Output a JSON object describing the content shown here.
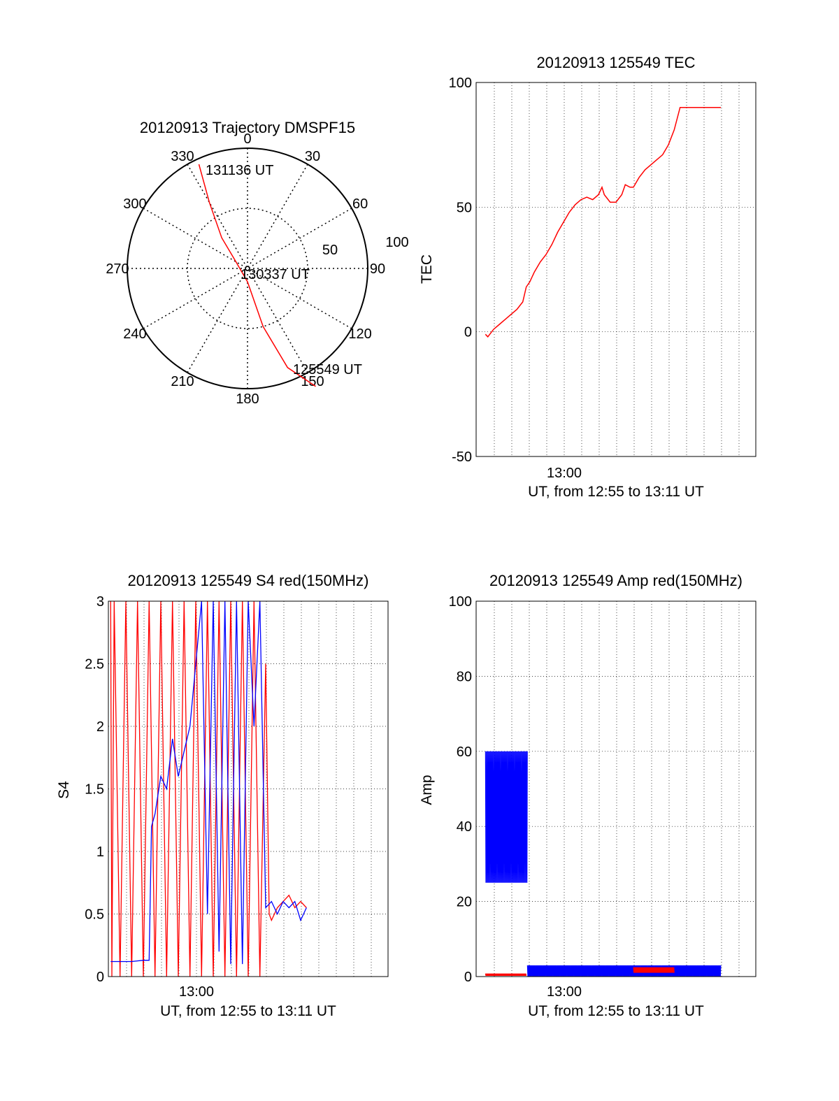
{
  "chart_data": [
    {
      "type": "polar",
      "title": "20120913 Trajectory DMSPF15",
      "angle_labels": [
        "0",
        "30",
        "60",
        "90",
        "120",
        "150",
        "180",
        "210",
        "240",
        "270",
        "300",
        "330"
      ],
      "radius_labels": [
        "50",
        "100"
      ],
      "trajectory": {
        "color": "#ff0000",
        "points": [
          {
            "az": 335,
            "zen": 86
          },
          {
            "az": 330,
            "zen": 57
          },
          {
            "az": 320,
            "zen": 30
          },
          {
            "az": 300,
            "zen": 10
          },
          {
            "az": 180,
            "zen": 10
          },
          {
            "az": 165,
            "zen": 45
          },
          {
            "az": 158,
            "zen": 80
          },
          {
            "az": 150,
            "zen": 102
          }
        ],
        "labels": [
          "131136 UT",
          "130337 UT",
          "125549 UT"
        ]
      }
    },
    {
      "type": "line",
      "title": "20120913 125549 TEC",
      "ylabel": "TEC",
      "xlabel": "UT, from 12:55 to 13:11 UT",
      "x_tick_label": "13:00",
      "x_range_minutes": [
        12.93,
        13.18
      ],
      "ylim": [
        -50,
        100
      ],
      "yticks": [
        "100",
        "50",
        "0",
        "-50"
      ],
      "grid": true,
      "series": [
        {
          "color": "#ff0000",
          "points": [
            [
              55.8,
              -1
            ],
            [
              56.0,
              -2
            ],
            [
              56.5,
              1
            ],
            [
              57.0,
              3
            ],
            [
              57.5,
              5
            ],
            [
              58.0,
              7
            ],
            [
              58.5,
              9
            ],
            [
              59.0,
              12
            ],
            [
              59.3,
              18
            ],
            [
              59.6,
              20
            ],
            [
              60.0,
              24
            ],
            [
              60.5,
              28
            ],
            [
              61.0,
              31
            ],
            [
              61.5,
              35
            ],
            [
              62.0,
              40
            ],
            [
              62.5,
              44
            ],
            [
              63.0,
              48
            ],
            [
              63.5,
              51
            ],
            [
              64.0,
              53
            ],
            [
              64.5,
              54
            ],
            [
              65.0,
              53
            ],
            [
              65.5,
              55
            ],
            [
              65.8,
              58
            ],
            [
              66.0,
              55
            ],
            [
              66.5,
              52
            ],
            [
              67.0,
              52
            ],
            [
              67.5,
              55
            ],
            [
              67.8,
              59
            ],
            [
              68.2,
              58
            ],
            [
              68.5,
              58
            ],
            [
              69.0,
              62
            ],
            [
              69.5,
              65
            ],
            [
              70.0,
              67
            ],
            [
              70.5,
              69
            ],
            [
              71.0,
              71
            ],
            [
              71.5,
              75
            ],
            [
              72.0,
              81
            ],
            [
              72.5,
              90
            ],
            [
              73.0,
              90
            ],
            [
              74.0,
              90
            ],
            [
              75.0,
              90
            ],
            [
              76.0,
              90
            ]
          ]
        }
      ]
    },
    {
      "type": "line",
      "title": "20120913 125549 S4 red(150MHz)",
      "ylabel": "S4",
      "xlabel": "UT, from 12:55 to 13:11 UT",
      "x_tick_label": "13:00",
      "ylim": [
        0,
        3
      ],
      "yticks": [
        "3",
        "2.5",
        "2",
        "1.5",
        "1",
        "0.5",
        "0"
      ],
      "grid": true,
      "series": [
        {
          "color": "#ff0000",
          "note_values": "red series",
          "points": [
            [
              55.2,
              3
            ],
            [
              55.3,
              0
            ],
            [
              55.5,
              3
            ],
            [
              56.0,
              0
            ],
            [
              56.5,
              3
            ],
            [
              57.0,
              0
            ],
            [
              57.5,
              3
            ],
            [
              58.0,
              0
            ],
            [
              58.5,
              3
            ],
            [
              59.0,
              0
            ],
            [
              59.5,
              3
            ],
            [
              60.0,
              0
            ],
            [
              60.5,
              3
            ],
            [
              61.0,
              0
            ],
            [
              61.5,
              3
            ],
            [
              62.0,
              0
            ],
            [
              62.5,
              3
            ],
            [
              63.0,
              0
            ],
            [
              63.5,
              3
            ],
            [
              64.0,
              0
            ],
            [
              64.5,
              3
            ],
            [
              65.0,
              0
            ],
            [
              65.5,
              3
            ],
            [
              66.0,
              0
            ],
            [
              66.5,
              3
            ],
            [
              67.0,
              0
            ],
            [
              67.5,
              3
            ],
            [
              68.0,
              0
            ],
            [
              68.5,
              2.5
            ],
            [
              68.8,
              0.5
            ],
            [
              69.0,
              0.45
            ],
            [
              69.5,
              0.55
            ],
            [
              70.0,
              0.6
            ],
            [
              70.5,
              0.65
            ],
            [
              71.0,
              0.55
            ],
            [
              71.5,
              0.6
            ],
            [
              72.0,
              0.55
            ]
          ]
        },
        {
          "color": "#0000ff",
          "points": [
            [
              55.2,
              0.12
            ],
            [
              56.0,
              0.12
            ],
            [
              57.0,
              0.12
            ],
            [
              58.0,
              0.13
            ],
            [
              58.5,
              0.13
            ],
            [
              58.7,
              1.2
            ],
            [
              59.0,
              1.3
            ],
            [
              59.5,
              1.6
            ],
            [
              60.0,
              1.5
            ],
            [
              60.5,
              1.9
            ],
            [
              61.0,
              1.6
            ],
            [
              61.5,
              1.8
            ],
            [
              62.0,
              2.0
            ],
            [
              62.5,
              2.5
            ],
            [
              63.0,
              3
            ],
            [
              63.5,
              0.5
            ],
            [
              64.0,
              3
            ],
            [
              64.5,
              0.2
            ],
            [
              65.0,
              3
            ],
            [
              65.5,
              0.1
            ],
            [
              66.0,
              3
            ],
            [
              66.5,
              0.1
            ],
            [
              67.0,
              3
            ],
            [
              67.5,
              2.0
            ],
            [
              68.0,
              3
            ],
            [
              68.5,
              0.55
            ],
            [
              69.0,
              0.6
            ],
            [
              69.5,
              0.5
            ],
            [
              70.0,
              0.6
            ],
            [
              70.5,
              0.55
            ],
            [
              71.0,
              0.6
            ],
            [
              71.5,
              0.45
            ],
            [
              72.0,
              0.55
            ]
          ]
        }
      ]
    },
    {
      "type": "line",
      "title": "20120913 125549 Amp red(150MHz)",
      "ylabel": "Amp",
      "xlabel": "UT, from 12:55 to 13:11 UT",
      "x_tick_label": "13:00",
      "ylim": [
        0,
        100
      ],
      "yticks": [
        "100",
        "80",
        "60",
        "40",
        "20",
        "0"
      ],
      "grid": true,
      "series": [
        {
          "color": "#0000ff",
          "band": [
            {
              "x_start": 55.8,
              "x_end": 59.4,
              "low": 25,
              "high": 60
            },
            {
              "x_start": 59.4,
              "x_end": 76.0,
              "low": 0,
              "high": 3
            }
          ]
        },
        {
          "color": "#ff0000",
          "band": [
            {
              "x_start": 55.8,
              "x_end": 59.3,
              "low": 0.2,
              "high": 0.8
            },
            {
              "x_start": 68.5,
              "x_end": 72.0,
              "low": 1,
              "high": 2.5
            }
          ]
        }
      ]
    }
  ]
}
